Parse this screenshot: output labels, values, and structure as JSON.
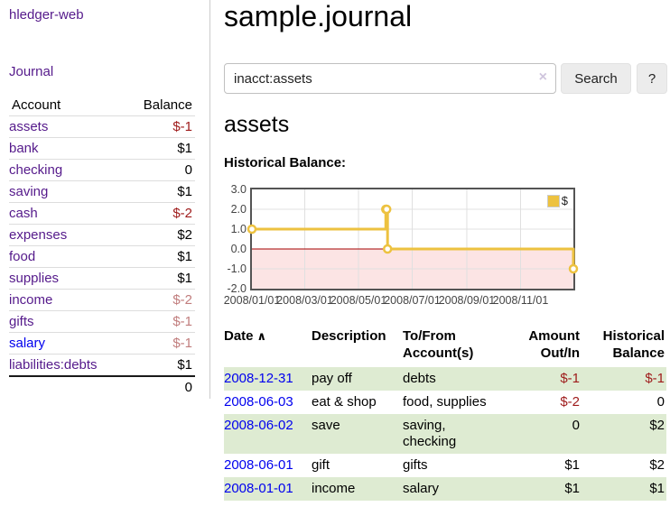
{
  "app": {
    "title": "hledger-web"
  },
  "colors": {
    "link_purple": "#551a8b",
    "link_blue": "#0000ee",
    "negative_strong": "#9e1a1a",
    "negative_soft": "#c17d7d",
    "row_shade_green": "#deebd2",
    "chart_line": "#edc240",
    "chart_negative_region": "#fce4e4",
    "chart_zero_line": "#a40000",
    "chart_border": "#545454",
    "chart_grid": "#e0e0e0"
  },
  "sidebar": {
    "journal_link": "Journal",
    "accounts": {
      "header_account": "Account",
      "header_balance": "Balance",
      "rows": [
        {
          "name": "assets",
          "balance": "$-1",
          "depth": 1,
          "emph": true,
          "bal_class": "neg-strong",
          "link_class": "purple"
        },
        {
          "name": "bank",
          "balance": "$1",
          "depth": 2,
          "emph": true,
          "bal_class": "",
          "link_class": "purple"
        },
        {
          "name": "checking",
          "balance": "0",
          "depth": 3,
          "emph": true,
          "bal_class": "",
          "link_class": "purple"
        },
        {
          "name": "saving",
          "balance": "$1",
          "depth": 3,
          "emph": true,
          "bal_class": "",
          "link_class": "purple"
        },
        {
          "name": "cash",
          "balance": "$-2",
          "depth": 2,
          "emph": true,
          "bal_class": "neg-strong",
          "link_class": "purple"
        },
        {
          "name": "expenses",
          "balance": "$2",
          "depth": 1,
          "emph": false,
          "bal_class": "",
          "link_class": "purple"
        },
        {
          "name": "food",
          "balance": "$1",
          "depth": 2,
          "emph": false,
          "bal_class": "",
          "link_class": "purple"
        },
        {
          "name": "supplies",
          "balance": "$1",
          "depth": 2,
          "emph": false,
          "bal_class": "",
          "link_class": "purple"
        },
        {
          "name": "income",
          "balance": "$-2",
          "depth": 1,
          "emph": false,
          "bal_class": "neg-soft",
          "link_class": "purple"
        },
        {
          "name": "gifts",
          "balance": "$-1",
          "depth": 2,
          "emph": false,
          "bal_class": "neg-soft",
          "link_class": "purple"
        },
        {
          "name": "salary",
          "balance": "$-1",
          "depth": 2,
          "emph": false,
          "bal_class": "neg-soft",
          "link_class": "blue"
        },
        {
          "name": "liabilities:debts",
          "balance": "$1",
          "depth": 1,
          "emph": false,
          "bal_class": "",
          "link_class": "purple"
        }
      ],
      "total": "0"
    }
  },
  "main": {
    "title": "sample.journal",
    "search": {
      "value": "inacct:assets",
      "clear_icon": "×",
      "search_button": "Search",
      "help_button": "?"
    },
    "account_heading": "assets",
    "chart_label": "Historical Balance:"
  },
  "chart_data": {
    "type": "line",
    "step": true,
    "title": "Historical Balance",
    "series": [
      {
        "name": "$",
        "color": "#edc240",
        "points": [
          {
            "x": "2008-01-01",
            "y": 1
          },
          {
            "x": "2008-06-01",
            "y": 2
          },
          {
            "x": "2008-06-02",
            "y": 2
          },
          {
            "x": "2008-06-03",
            "y": 0
          },
          {
            "x": "2008-12-31",
            "y": -1
          }
        ]
      }
    ],
    "x_range": [
      "2008-01-01",
      "2008-12-31"
    ],
    "ylim": [
      -2.0,
      3.0
    ],
    "yticks": [
      3.0,
      2.0,
      1.0,
      0.0,
      -1.0,
      -2.0
    ],
    "xticks": [
      {
        "date": "2008-01-01",
        "label": "2008/01/01"
      },
      {
        "date": "2008-03-01",
        "label": "2008/03/01"
      },
      {
        "date": "2008-05-01",
        "label": "2008/05/01"
      },
      {
        "date": "2008-07-01",
        "label": "2008/07/01"
      },
      {
        "date": "2008-09-01",
        "label": "2008/09/01"
      },
      {
        "date": "2008-11-01",
        "label": "2008/11/01"
      }
    ],
    "legend": {
      "position": "top-right",
      "label": "$"
    },
    "grid": true
  },
  "register": {
    "headers": {
      "date": "Date",
      "sort_icon": "∧",
      "description": "Description",
      "accounts_line1": "To/From",
      "accounts_line2": "Account(s)",
      "amount_line1": "Amount",
      "amount_line2": "Out/In",
      "balance_line1": "Historical",
      "balance_line2": "Balance"
    },
    "rows": [
      {
        "date": "2008-12-31",
        "description": "pay off",
        "accounts": "debts",
        "amount": "$-1",
        "amount_neg": true,
        "balance": "$-1",
        "balance_neg": true,
        "shaded": true
      },
      {
        "date": "2008-06-03",
        "description": "eat & shop",
        "accounts": "food, supplies",
        "amount": "$-2",
        "amount_neg": true,
        "balance": "0",
        "balance_neg": false,
        "shaded": false
      },
      {
        "date": "2008-06-02",
        "description": "save",
        "accounts": "saving, checking",
        "amount": "0",
        "amount_neg": false,
        "balance": "$2",
        "balance_neg": false,
        "shaded": true
      },
      {
        "date": "2008-06-01",
        "description": "gift",
        "accounts": "gifts",
        "amount": "$1",
        "amount_neg": false,
        "balance": "$2",
        "balance_neg": false,
        "shaded": false
      },
      {
        "date": "2008-01-01",
        "description": "income",
        "accounts": "salary",
        "amount": "$1",
        "amount_neg": false,
        "balance": "$1",
        "balance_neg": false,
        "shaded": true
      }
    ]
  }
}
